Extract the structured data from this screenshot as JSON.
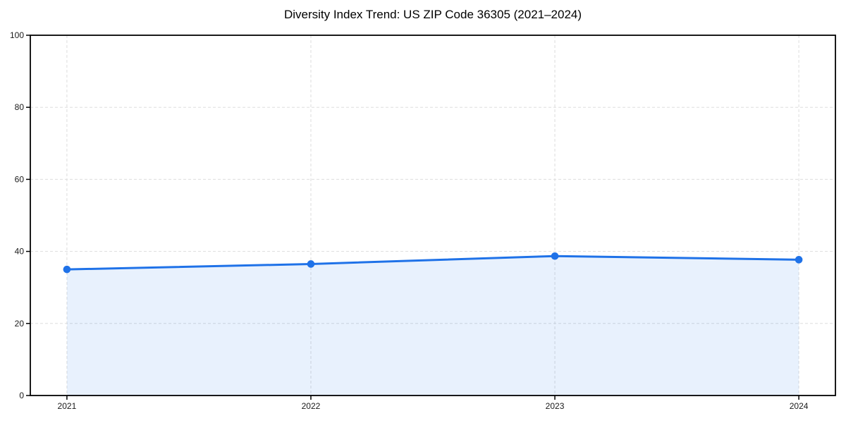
{
  "figure": {
    "background": "#ffffff"
  },
  "chart_data": {
    "type": "area",
    "title": "Diversity Index Trend: US ZIP Code 36305 (2021–2024)",
    "categories": [
      "2021",
      "2022",
      "2023",
      "2024"
    ],
    "x": [
      2021,
      2022,
      2023,
      2024
    ],
    "values": [
      35.0,
      36.5,
      38.7,
      37.7
    ],
    "xlabel": "",
    "ylabel": "",
    "ylim": [
      0,
      100
    ],
    "yticks": [
      0,
      20,
      40,
      60,
      80,
      100
    ],
    "xlim": [
      2020.85,
      2024.15
    ],
    "grid": {
      "style": "dashed",
      "axis": "both",
      "on": true
    },
    "legend": "none",
    "marker": "circle",
    "colors": {
      "line": "#1f72e8",
      "marker": "#1f72e8",
      "fill": "rgba(31,114,232,0.10)",
      "grid": "#dddddd",
      "axis": "#000000",
      "tick_text": "#1a1a1a",
      "title_text": "#000000",
      "background": "#ffffff"
    }
  }
}
